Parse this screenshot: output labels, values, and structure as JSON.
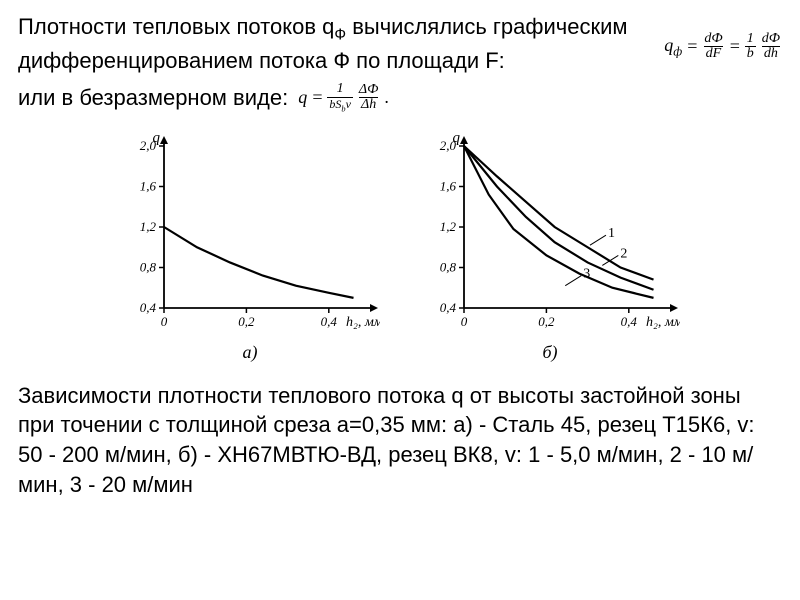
{
  "text": {
    "p1a": "Плотности тепловых потоков q",
    "p1sub": "Ф",
    "p1b": " вычислялись графическим дифференцированием потока Ф по площади F:",
    "p2": "или в безразмерном виде:",
    "caption": "Зависимости плотности теплового потока q от высоты застойной зоны  при точении с толщиной среза а=0,35 мм: а) - Сталь 45,  резец Т15К6, v:  50 - 200  м/мин,     б) - ХН67МВТЮ-ВД, резец ВК8, v:  1 - 5,0 м/мин, 2 - 10  м/мин, 3 - 20 м/мин"
  },
  "formula1": {
    "lhs": "q",
    "lhs_sub": "ф",
    "eq": "=",
    "f1_num": "dФ",
    "f1_den": "dF",
    "f2_num": "1",
    "f2_den": "b",
    "f3_num": "dФ",
    "f3_den": "dh"
  },
  "formula2": {
    "lhs": "q",
    "eq": "=",
    "f1_num": "1",
    "f1_den": "bS_b v",
    "f2_num": "ΔФ",
    "f2_den": "Δh",
    "dot": "."
  },
  "chart_a": {
    "type": "line",
    "sub_label": "а)",
    "ylabel": "q",
    "xlabel": "h₂, мм",
    "xticks": [
      0,
      0.2,
      0.4
    ],
    "xtick_labels": [
      "0",
      "0,2",
      "0,4"
    ],
    "yticks": [
      0.4,
      0.8,
      1.2,
      1.6,
      2.0
    ],
    "ytick_labels": [
      "0,4",
      "0,8",
      "1,2",
      "1,6",
      "2,0"
    ],
    "xlim": [
      0,
      0.5
    ],
    "ylim": [
      0.4,
      2.0
    ],
    "axis_fontsize": 13,
    "line_color": "#000000",
    "line_width": 2.2,
    "background_color": "#ffffff",
    "series": [
      {
        "name": "s1",
        "points": [
          [
            0,
            1.2
          ],
          [
            0.08,
            1.0
          ],
          [
            0.16,
            0.85
          ],
          [
            0.24,
            0.72
          ],
          [
            0.32,
            0.62
          ],
          [
            0.4,
            0.55
          ],
          [
            0.46,
            0.5
          ]
        ]
      }
    ]
  },
  "chart_b": {
    "type": "line",
    "sub_label": "б)",
    "ylabel": "q",
    "xlabel": "h₂, мм",
    "xticks": [
      0,
      0.2,
      0.4
    ],
    "xtick_labels": [
      "0",
      "0,2",
      "0,4"
    ],
    "yticks": [
      0.4,
      0.8,
      1.2,
      1.6,
      2.0
    ],
    "ytick_labels": [
      "0,4",
      "0,8",
      "1,2",
      "1,6",
      "2,0"
    ],
    "xlim": [
      0,
      0.5
    ],
    "ylim": [
      0.4,
      2.0
    ],
    "axis_fontsize": 13,
    "line_color": "#000000",
    "line_width": 2.2,
    "background_color": "#ffffff",
    "series": [
      {
        "name": "1",
        "label": "1",
        "points": [
          [
            0,
            2.0
          ],
          [
            0.08,
            1.7
          ],
          [
            0.15,
            1.45
          ],
          [
            0.22,
            1.2
          ],
          [
            0.3,
            1.0
          ],
          [
            0.38,
            0.8
          ],
          [
            0.46,
            0.68
          ]
        ]
      },
      {
        "name": "2",
        "label": "2",
        "points": [
          [
            0,
            2.0
          ],
          [
            0.08,
            1.6
          ],
          [
            0.15,
            1.3
          ],
          [
            0.22,
            1.05
          ],
          [
            0.3,
            0.85
          ],
          [
            0.38,
            0.7
          ],
          [
            0.46,
            0.58
          ]
        ]
      },
      {
        "name": "3",
        "label": "3",
        "points": [
          [
            0,
            2.0
          ],
          [
            0.06,
            1.52
          ],
          [
            0.12,
            1.18
          ],
          [
            0.2,
            0.92
          ],
          [
            0.28,
            0.74
          ],
          [
            0.36,
            0.6
          ],
          [
            0.46,
            0.5
          ]
        ]
      }
    ],
    "series_label_positions": {
      "1": [
        0.33,
        1.08
      ],
      "2": [
        0.36,
        0.88
      ],
      "3": [
        0.27,
        0.68
      ]
    }
  }
}
